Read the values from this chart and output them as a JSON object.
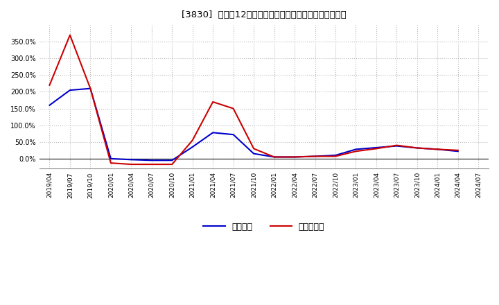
{
  "title": "[3830]  利益だ12か月移動合計の対前年同期増減率の推移",
  "x_labels": [
    "2019/04",
    "2019/07",
    "2019/10",
    "2020/01",
    "2020/04",
    "2020/07",
    "2020/10",
    "2021/01",
    "2021/04",
    "2021/07",
    "2021/10",
    "2022/01",
    "2022/04",
    "2022/07",
    "2022/10",
    "2023/01",
    "2023/04",
    "2023/07",
    "2023/10",
    "2024/01",
    "2024/04",
    "2024/07"
  ],
  "keijo_y": [
    160.0,
    205.0,
    210.0,
    0.0,
    -3.0,
    -5.0,
    -5.0,
    35.0,
    78.0,
    72.0,
    15.0,
    5.0,
    5.0,
    7.0,
    10.0,
    28.0,
    33.0,
    38.0,
    32.0,
    28.0,
    22.0,
    null
  ],
  "junri_y": [
    220.0,
    370.0,
    210.0,
    -13.0,
    -17.0,
    -17.0,
    -17.0,
    55.0,
    170.0,
    150.0,
    30.0,
    5.0,
    5.0,
    7.0,
    7.0,
    22.0,
    30.0,
    40.0,
    32.0,
    28.0,
    25.0,
    null
  ],
  "keijo_color": "#0000cc",
  "junri_color": "#cc0000",
  "bg_color": "#ffffff",
  "grid_color": "#bbbbbb",
  "yticks": [
    0.0,
    50.0,
    100.0,
    150.0,
    200.0,
    250.0,
    300.0,
    350.0
  ],
  "ylim_min": -30.0,
  "ylim_max": 400.0,
  "legend_keijo": "経常利益",
  "legend_junri": "当期純利益"
}
